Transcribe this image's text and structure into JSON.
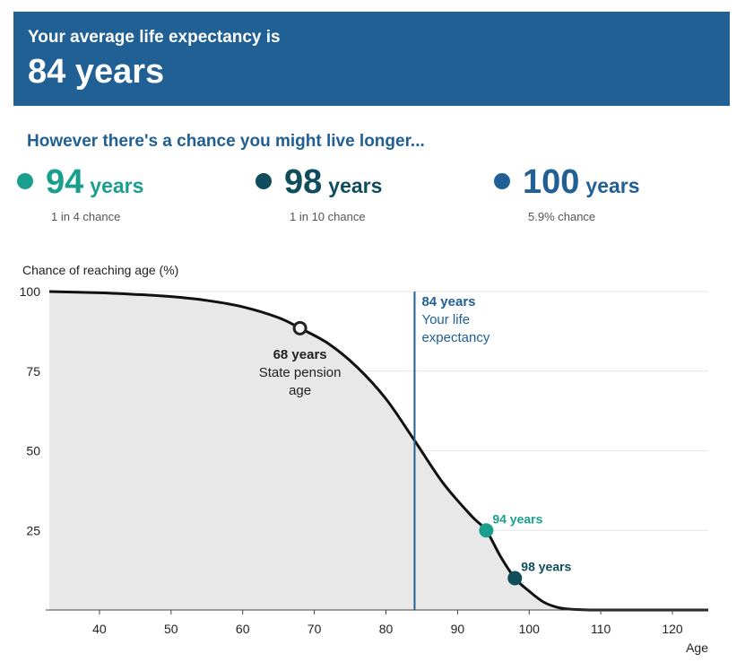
{
  "header": {
    "subtitle": "Your average life expectancy is",
    "value": "84 years"
  },
  "subheading": "However there's a chance you might live longer...",
  "stats": [
    {
      "number": "94",
      "unit": "years",
      "chance": "1 in 4 chance",
      "color": "#1a9f8f"
    },
    {
      "number": "98",
      "unit": "years",
      "chance": "1 in 10 chance",
      "color": "#0f4c5c"
    },
    {
      "number": "100",
      "unit": "years",
      "chance": "5.9% chance",
      "color": "#206095"
    }
  ],
  "chart_data": {
    "type": "area",
    "ylabel": "Chance of reaching age (%)",
    "xlabel": "Age",
    "xlim": [
      33,
      125
    ],
    "ylim": [
      0,
      100
    ],
    "x_ticks": [
      40,
      50,
      60,
      70,
      80,
      90,
      100,
      110,
      120
    ],
    "y_ticks": [
      25,
      50,
      75,
      100
    ],
    "x": [
      33,
      40,
      45,
      50,
      55,
      60,
      65,
      68,
      72,
      76,
      80,
      84,
      88,
      92,
      94,
      96,
      98,
      100,
      102,
      104,
      106,
      108,
      110,
      115,
      120,
      125
    ],
    "y": [
      100,
      99.6,
      99.1,
      98.4,
      97.2,
      95.2,
      91.8,
      88.5,
      83.6,
      76.2,
      66.3,
      53.2,
      39.8,
      29.4,
      25.0,
      16.8,
      10.0,
      5.9,
      2.5,
      0.8,
      0.2,
      0.05,
      0,
      0,
      0,
      0
    ],
    "life_expectancy": {
      "age": 84,
      "label_value": "84 years",
      "label_text": [
        "Your life",
        "expectancy"
      ],
      "color": "#206095"
    },
    "markers": [
      {
        "age": 68,
        "value": 88.5,
        "label": "68 years",
        "sublabel": [
          "State pension",
          "age"
        ],
        "style": "hollow",
        "color": "#222222"
      },
      {
        "age": 94,
        "value": 25.0,
        "label": "94 years",
        "style": "filled",
        "color": "#1a9f8f"
      },
      {
        "age": 98,
        "value": 10.0,
        "label": "98 years",
        "style": "filled",
        "color": "#0f4c5c"
      }
    ]
  }
}
